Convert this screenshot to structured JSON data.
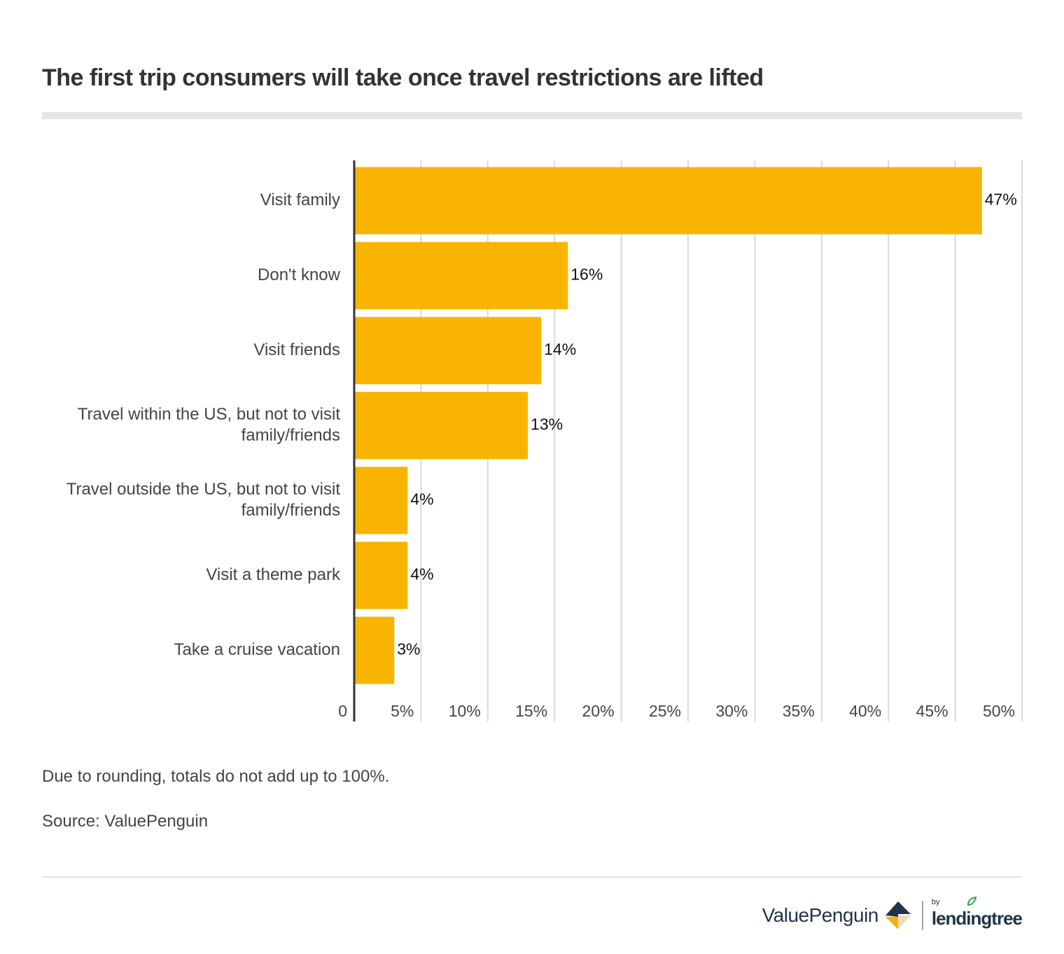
{
  "title": "The first trip consumers will take once travel restrictions are lifted",
  "note": "Due to rounding, totals do not add up to 100%.",
  "source": "Source: ValuePenguin",
  "brand": {
    "name": "ValuePenguin",
    "partner_by": "by",
    "partner": "lendingtree"
  },
  "colors": {
    "bar": "#F8B400",
    "grid": "#d9d9d9",
    "axis": "#333333"
  },
  "chart_data": {
    "type": "bar",
    "orientation": "horizontal",
    "categories": [
      "Visit family",
      "Don't know",
      "Visit friends",
      "Travel within the US, but not to visit family/friends",
      "Travel outside the US, but not to visit family/friends",
      "Visit a theme park",
      "Take a cruise vacation"
    ],
    "category_lines": [
      [
        "Visit family"
      ],
      [
        "Don't know"
      ],
      [
        "Visit friends"
      ],
      [
        "Travel within the US, but not to visit",
        "family/friends"
      ],
      [
        "Travel outside the US, but not to visit",
        "family/friends"
      ],
      [
        "Visit a theme park"
      ],
      [
        "Take a cruise vacation"
      ]
    ],
    "values": [
      47,
      16,
      14,
      13,
      4,
      4,
      3
    ],
    "value_labels": [
      "47%",
      "16%",
      "14%",
      "13%",
      "4%",
      "4%",
      "3%"
    ],
    "xlim": [
      0,
      50
    ],
    "xticks": [
      0,
      5,
      10,
      15,
      20,
      25,
      30,
      35,
      40,
      45,
      50
    ],
    "xtick_labels": [
      "0",
      "5%",
      "10%",
      "15%",
      "20%",
      "25%",
      "30%",
      "35%",
      "40%",
      "45%",
      "50%"
    ],
    "grid": true,
    "legend": "none"
  }
}
